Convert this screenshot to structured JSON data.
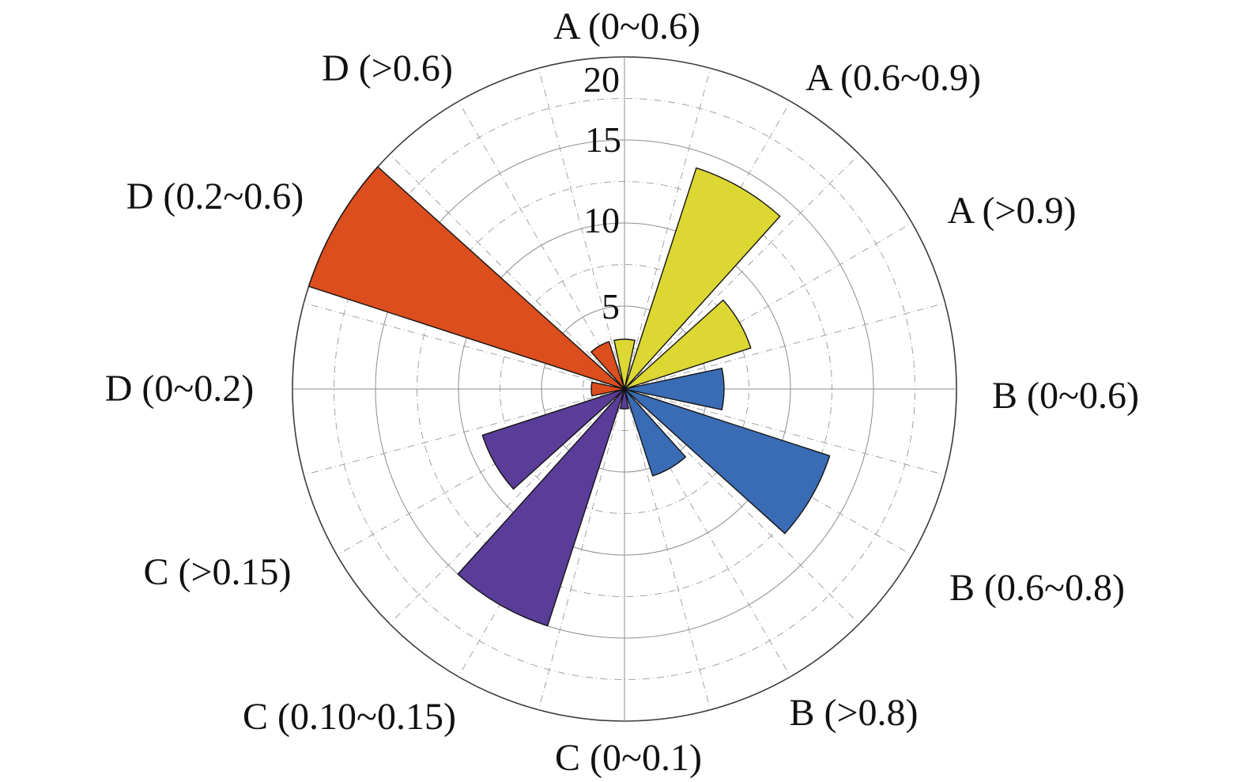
{
  "chart_data": {
    "type": "bar",
    "polar": true,
    "title": "",
    "categories": [
      "A (0~0.6)",
      "A (0.6~0.9)",
      "A (>0.9)",
      "B (0~0.6)",
      "B (0.6~0.8)",
      "B (>0.8)",
      "C (0~0.1)",
      "C (0.10~0.15)",
      "C (>0.15)",
      "D (0~0.2)",
      "D (0.2~0.6)",
      "D (>0.6)"
    ],
    "values": [
      3,
      14,
      8,
      6,
      13,
      5.5,
      1.2,
      15,
      9,
      2,
      20,
      3
    ],
    "angles_deg": [
      0,
      30,
      60,
      90,
      120,
      150,
      180,
      210,
      240,
      270,
      300,
      330
    ],
    "colors": [
      "#DDD733",
      "#DDD733",
      "#DDD733",
      "#3A6CB5",
      "#3A6CB5",
      "#3A6CB5",
      "#5A3C99",
      "#5A3C99",
      "#5A3C99",
      "#DC4E1D",
      "#DC4E1D",
      "#DC4E1D"
    ],
    "group_colors": {
      "A": "#DDD733",
      "B": "#3A6CB5",
      "C": "#5A3C99",
      "D": "#DC4E1D"
    },
    "wedge_width_deg": 24,
    "radial_ticks": [
      5,
      10,
      15,
      20
    ],
    "rlim": [
      0,
      20
    ],
    "grid": {
      "major_step": 5,
      "minor_step": 2.5,
      "angle_step_deg": 15,
      "grid_on": true,
      "legend": "none"
    }
  }
}
